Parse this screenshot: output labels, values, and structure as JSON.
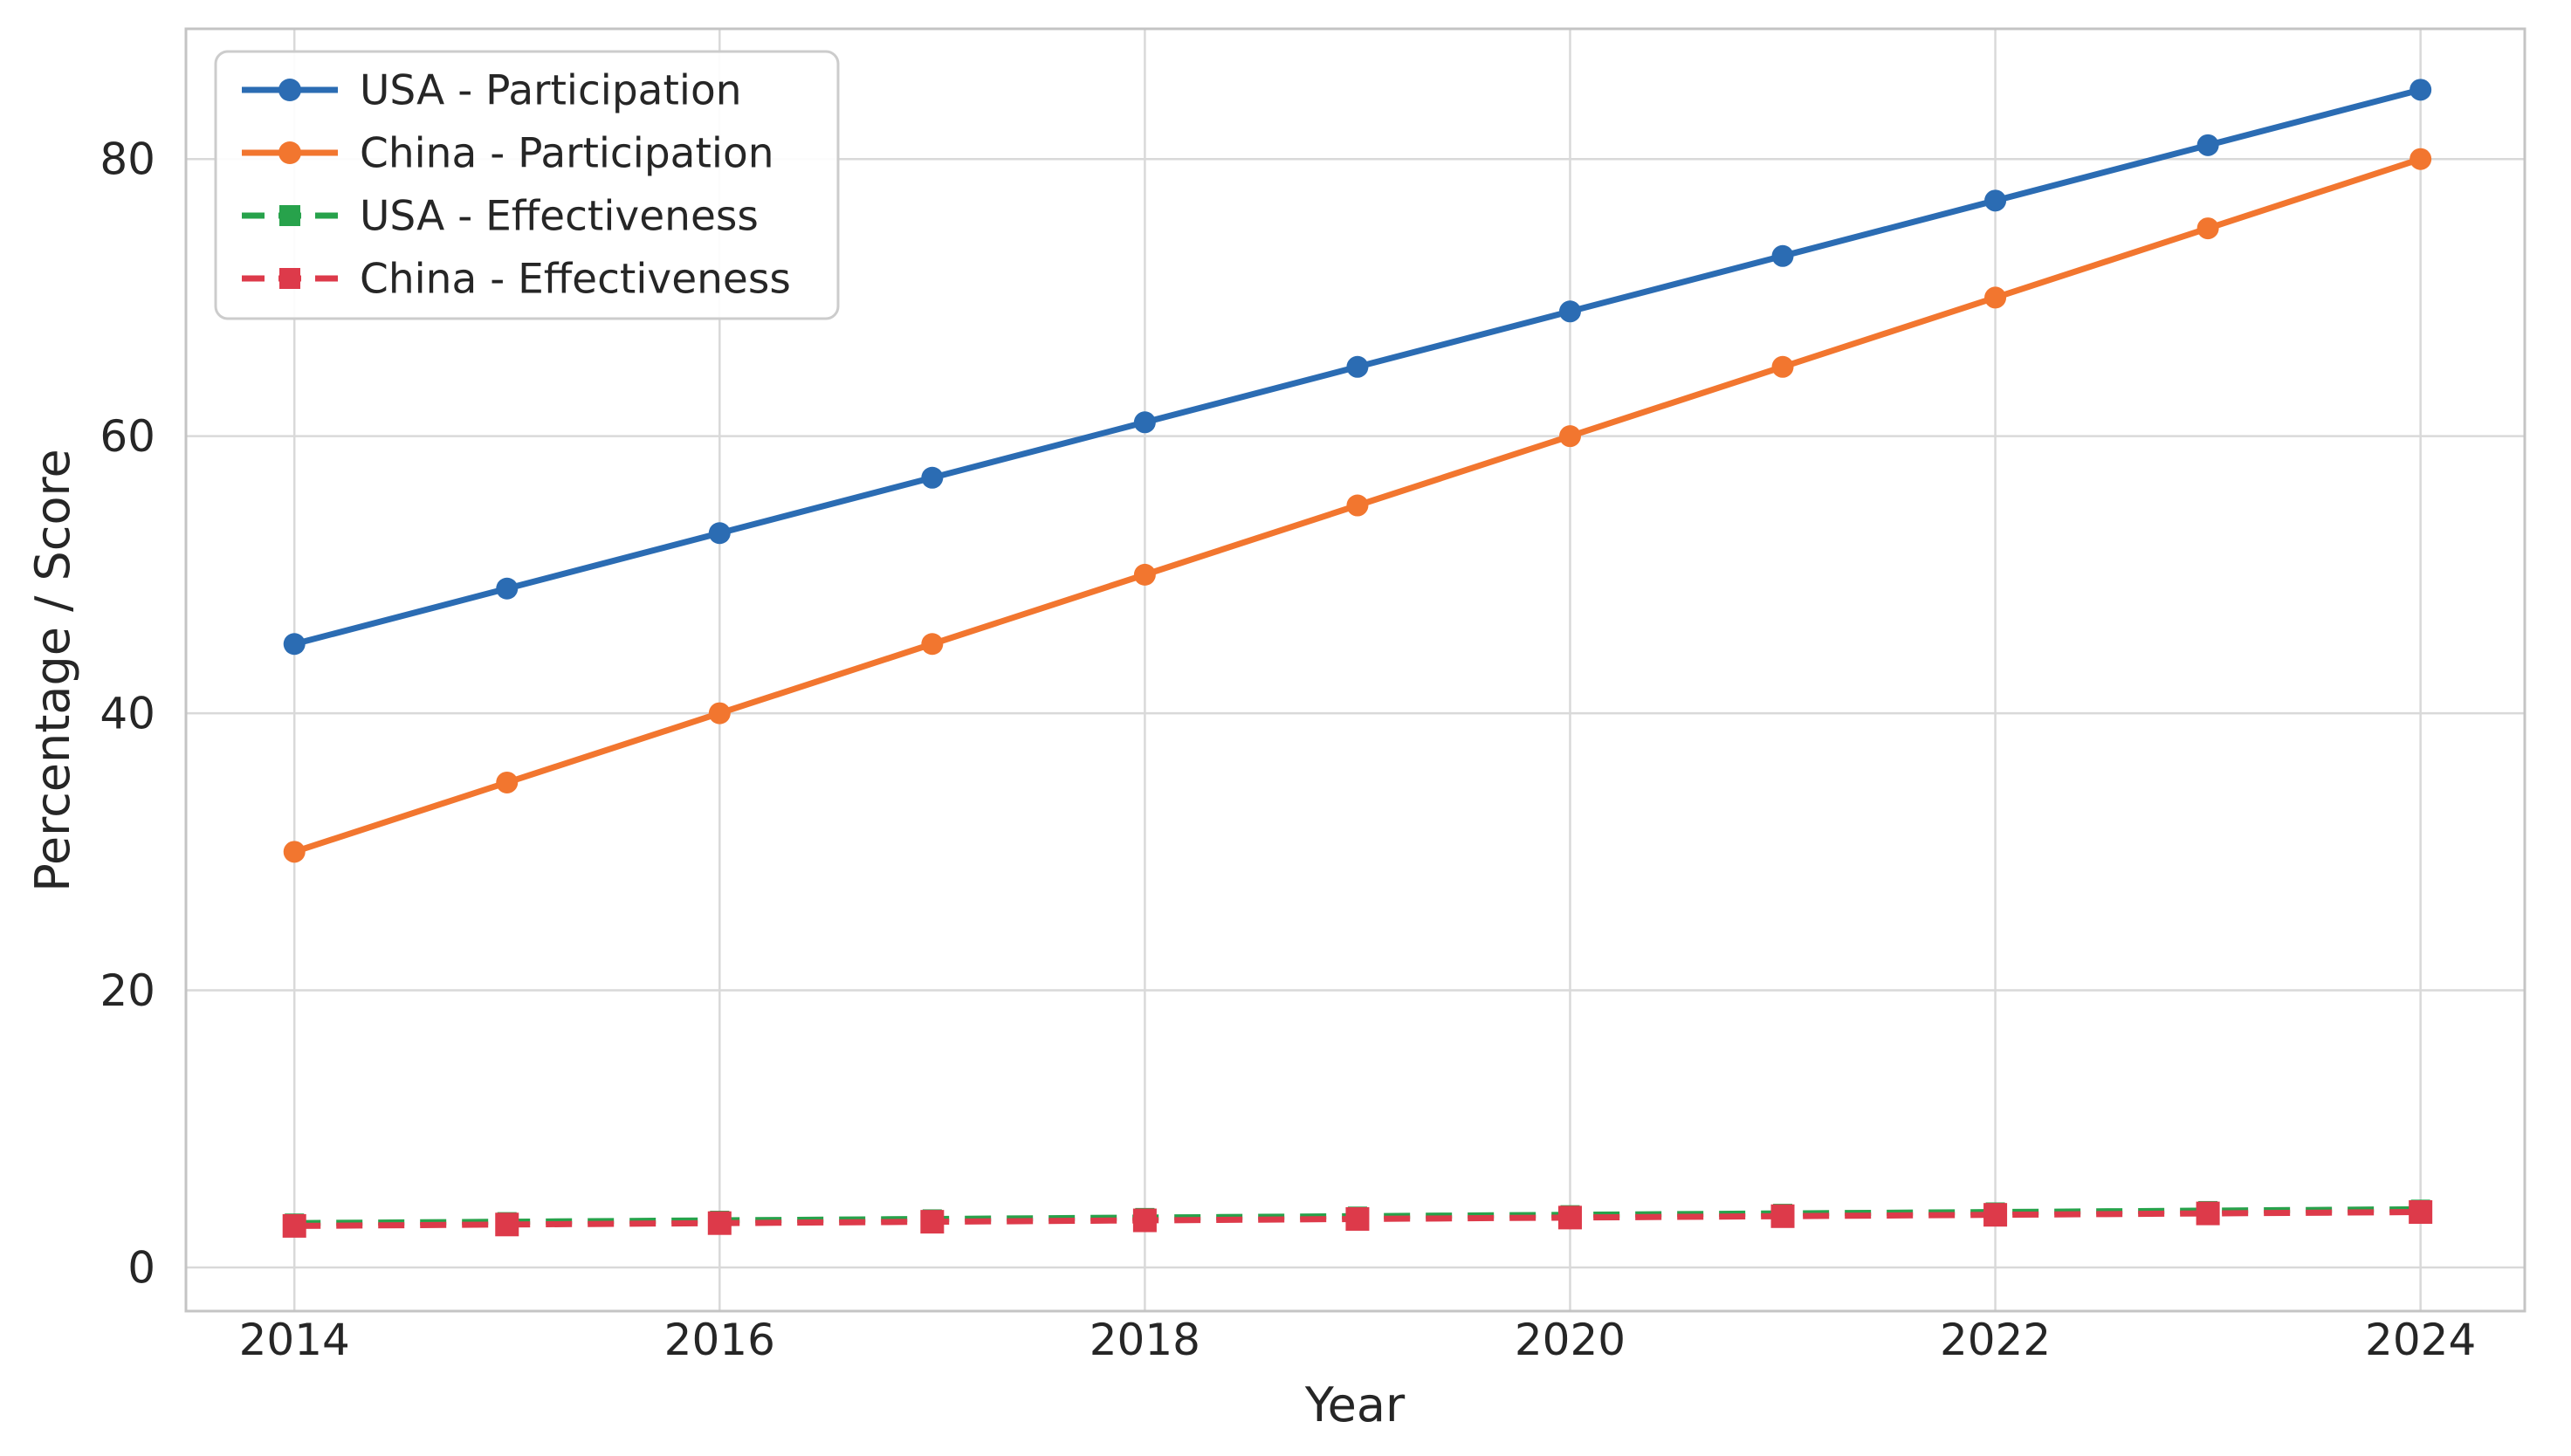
{
  "figure": {
    "background": "#ffffff"
  },
  "chart_data": {
    "type": "line",
    "title": "",
    "xlabel": "Year",
    "ylabel": "Percentage / Score",
    "x": [
      2014,
      2015,
      2016,
      2017,
      2018,
      2019,
      2020,
      2021,
      2022,
      2023,
      2024
    ],
    "series": [
      {
        "name": "USA - Participation",
        "color": "#2b6cb3",
        "line_style": "solid",
        "marker": "circle",
        "values": [
          45,
          49,
          53,
          57,
          61,
          65,
          69,
          73,
          77,
          81,
          85
        ]
      },
      {
        "name": "China - Participation",
        "color": "#f2762f",
        "line_style": "solid",
        "marker": "circle",
        "values": [
          30,
          35,
          40,
          45,
          50,
          55,
          60,
          65,
          70,
          75,
          80
        ]
      },
      {
        "name": "USA - Effectiveness",
        "color": "#27a24b",
        "line_style": "dashed",
        "marker": "square",
        "values": [
          3.2,
          3.3,
          3.4,
          3.5,
          3.6,
          3.7,
          3.8,
          3.9,
          4.0,
          4.1,
          4.2
        ]
      },
      {
        "name": "China - Effectiveness",
        "color": "#dd3a4a",
        "line_style": "dashed",
        "marker": "square",
        "values": [
          3.0,
          3.1,
          3.2,
          3.3,
          3.4,
          3.5,
          3.6,
          3.7,
          3.8,
          3.9,
          4.0
        ]
      }
    ],
    "x_ticks": [
      2014,
      2016,
      2018,
      2020,
      2022,
      2024
    ],
    "y_ticks": [
      0,
      20,
      40,
      60,
      80
    ],
    "xlim": [
      2013.49,
      2024.49
    ],
    "ylim": [
      -3.15,
      89.4
    ],
    "grid": true,
    "legend_position": "upper left",
    "grid_color": "#d9d9d9",
    "spine_color": "#c4c4c4",
    "text_color": "#262626"
  }
}
